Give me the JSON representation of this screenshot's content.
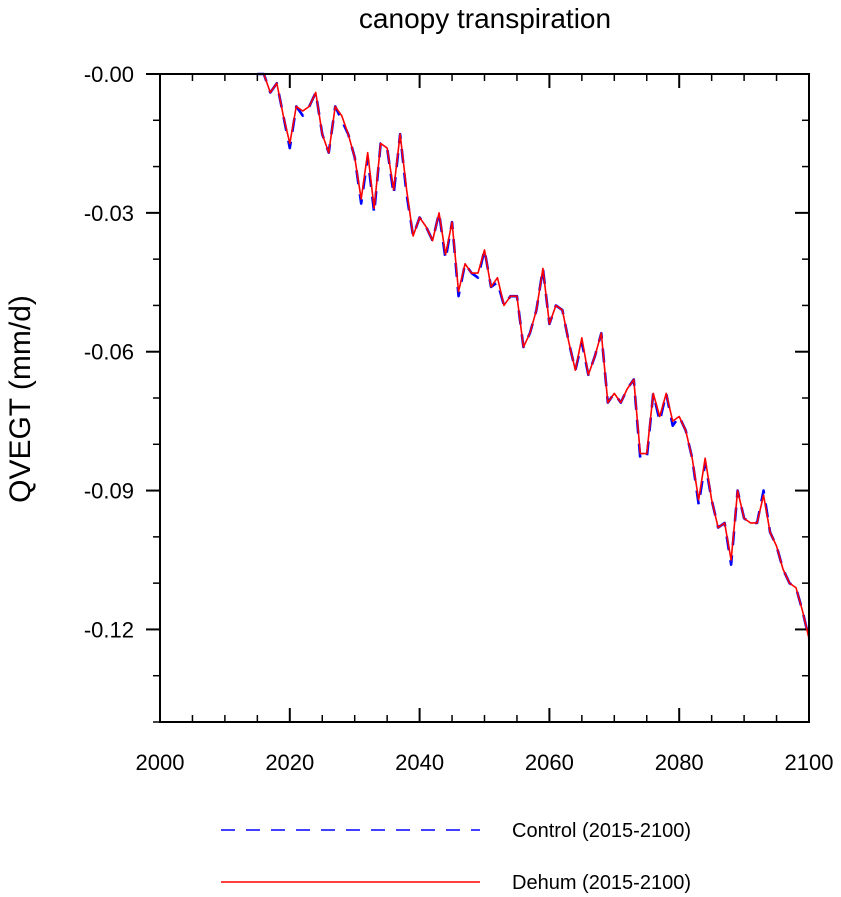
{
  "chart_data": {
    "type": "line",
    "title": "canopy transpiration",
    "xlabel": "",
    "ylabel": "QVEGT  (mm/d)",
    "xlim": [
      2000,
      2100
    ],
    "ylim": [
      -0.14,
      0.0
    ],
    "x_ticks": [
      2000,
      2020,
      2040,
      2060,
      2080,
      2100
    ],
    "x_tick_labels": [
      "2000",
      "2020",
      "2040",
      "2060",
      "2080",
      "2100"
    ],
    "y_ticks": [
      0.0,
      -0.03,
      -0.06,
      -0.09,
      -0.12
    ],
    "y_tick_labels": [
      "-0.00",
      "-0.03",
      "-0.06",
      "-0.09",
      "-0.12"
    ],
    "grid": false,
    "legend_position": "bottom",
    "x": [
      2015,
      2016,
      2017,
      2018,
      2019,
      2020,
      2021,
      2022,
      2023,
      2024,
      2025,
      2026,
      2027,
      2028,
      2029,
      2030,
      2031,
      2032,
      2033,
      2034,
      2035,
      2036,
      2037,
      2038,
      2039,
      2040,
      2041,
      2042,
      2043,
      2044,
      2045,
      2046,
      2047,
      2048,
      2049,
      2050,
      2051,
      2052,
      2053,
      2054,
      2055,
      2056,
      2057,
      2058,
      2059,
      2060,
      2061,
      2062,
      2063,
      2064,
      2065,
      2066,
      2067,
      2068,
      2069,
      2070,
      2071,
      2072,
      2073,
      2074,
      2075,
      2076,
      2077,
      2078,
      2079,
      2080,
      2081,
      2082,
      2083,
      2084,
      2085,
      2086,
      2087,
      2088,
      2089,
      2090,
      2091,
      2092,
      2093,
      2094,
      2095,
      2096,
      2097,
      2098,
      2099,
      2100
    ],
    "series": [
      {
        "name": "Control (2015-2100)",
        "color": "#0000ff",
        "style": "dashed",
        "values": [
          0.0,
          0.0,
          -0.004,
          -0.002,
          -0.009,
          -0.016,
          -0.007,
          -0.009,
          -0.007,
          -0.004,
          -0.013,
          -0.017,
          -0.007,
          -0.01,
          -0.013,
          -0.018,
          -0.028,
          -0.018,
          -0.03,
          -0.015,
          -0.016,
          -0.026,
          -0.013,
          -0.026,
          -0.035,
          -0.031,
          -0.033,
          -0.036,
          -0.03,
          -0.04,
          -0.032,
          -0.048,
          -0.041,
          -0.043,
          -0.044,
          -0.038,
          -0.046,
          -0.045,
          -0.05,
          -0.048,
          -0.048,
          -0.059,
          -0.056,
          -0.051,
          -0.042,
          -0.054,
          -0.05,
          -0.051,
          -0.058,
          -0.064,
          -0.058,
          -0.065,
          -0.061,
          -0.056,
          -0.071,
          -0.069,
          -0.071,
          -0.068,
          -0.066,
          -0.083,
          -0.083,
          -0.069,
          -0.075,
          -0.069,
          -0.076,
          -0.074,
          -0.077,
          -0.083,
          -0.093,
          -0.084,
          -0.092,
          -0.098,
          -0.097,
          -0.106,
          -0.09,
          -0.096,
          -0.097,
          -0.097,
          -0.09,
          -0.099,
          -0.102,
          -0.107,
          -0.11,
          -0.111,
          -0.116,
          -0.122
        ]
      },
      {
        "name": "Dehum (2015-2100)",
        "color": "#ff0000",
        "style": "solid",
        "values": [
          0.0,
          0.0,
          -0.004,
          -0.002,
          -0.009,
          -0.015,
          -0.007,
          -0.008,
          -0.007,
          -0.004,
          -0.013,
          -0.017,
          -0.007,
          -0.009,
          -0.013,
          -0.018,
          -0.027,
          -0.017,
          -0.029,
          -0.015,
          -0.016,
          -0.025,
          -0.013,
          -0.025,
          -0.035,
          -0.031,
          -0.033,
          -0.036,
          -0.03,
          -0.039,
          -0.032,
          -0.047,
          -0.041,
          -0.043,
          -0.043,
          -0.038,
          -0.046,
          -0.044,
          -0.05,
          -0.048,
          -0.048,
          -0.059,
          -0.056,
          -0.051,
          -0.042,
          -0.054,
          -0.05,
          -0.051,
          -0.058,
          -0.064,
          -0.057,
          -0.065,
          -0.061,
          -0.056,
          -0.071,
          -0.069,
          -0.071,
          -0.068,
          -0.066,
          -0.082,
          -0.082,
          -0.069,
          -0.074,
          -0.069,
          -0.075,
          -0.074,
          -0.077,
          -0.083,
          -0.092,
          -0.083,
          -0.092,
          -0.098,
          -0.097,
          -0.105,
          -0.09,
          -0.096,
          -0.097,
          -0.097,
          -0.091,
          -0.099,
          -0.102,
          -0.107,
          -0.11,
          -0.111,
          -0.116,
          -0.122
        ]
      }
    ]
  }
}
